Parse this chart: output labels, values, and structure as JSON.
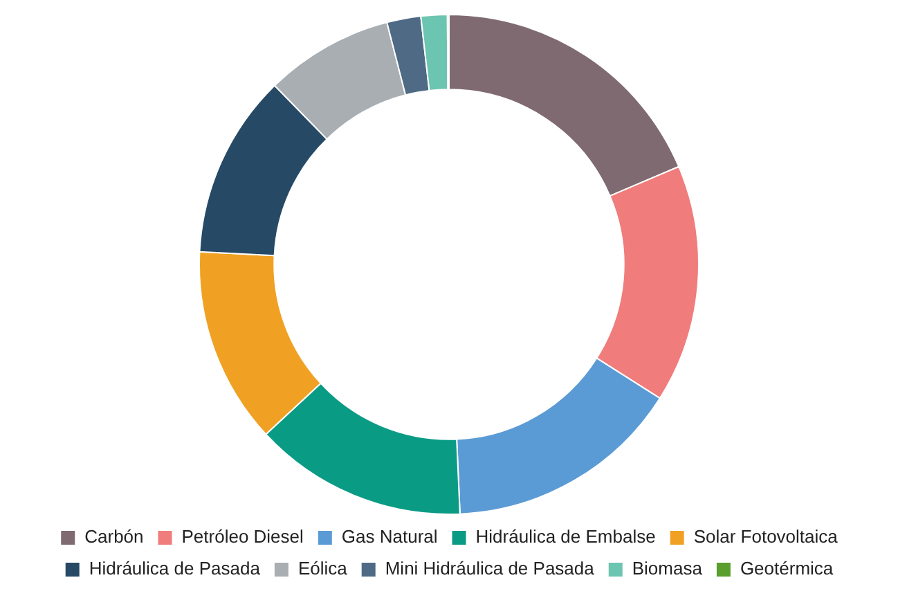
{
  "chart_data": {
    "type": "donut",
    "categories": [
      "Carbón",
      "Petróleo Diesel",
      "Gas Natural",
      "Hidráulica de Embalse",
      "Solar Fotovoltaica",
      "Hidráulica de Pasada",
      "Eólica",
      "Mini Hidráulica de Pasada",
      "Biomasa",
      "Geotérmica"
    ],
    "values": [
      18.6,
      15.4,
      15.3,
      13.8,
      12.7,
      11.9,
      8.3,
      2.2,
      1.7,
      0.1
    ],
    "colors": [
      "#7f6a72",
      "#f07c7c",
      "#5b9bd5",
      "#0a9b85",
      "#f0a123",
      "#264966",
      "#a9aeb2",
      "#4f6a85",
      "#6cc5b0",
      "#5a9e2e"
    ],
    "legend": "bottom"
  }
}
